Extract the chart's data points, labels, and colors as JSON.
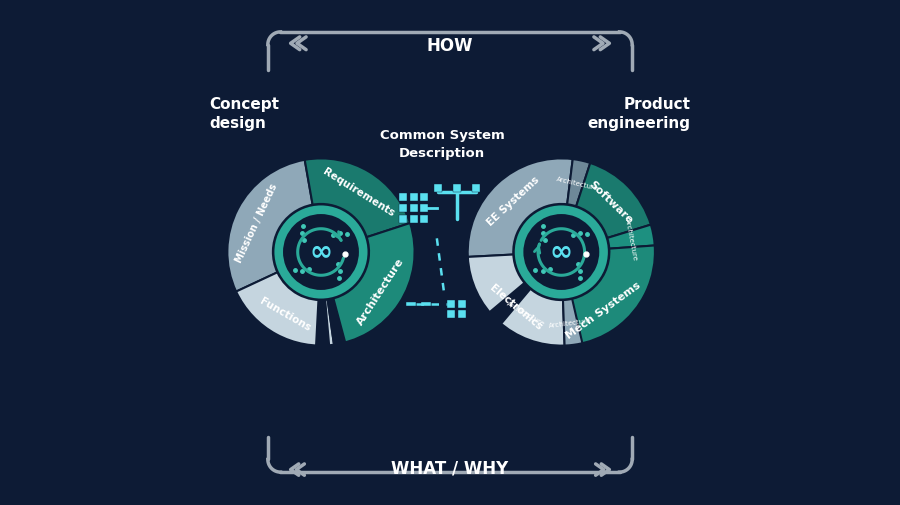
{
  "bg_color": "#0d1b35",
  "teal_dark": "#1a7a6e",
  "teal_mid": "#2aaa99",
  "teal_light": "#40c8b8",
  "cyan_light": "#5ae0f0",
  "gray_light": "#b0bec5",
  "gray_mid": "#8a9aaa",
  "gray_seg": "#8fa8b8",
  "gray_light_seg": "#c5d5df",
  "white": "#ffffff",
  "bracket_color": "#a0aab5",
  "lcx": 0.245,
  "lcy": 0.5,
  "rcx": 0.72,
  "rcy": 0.5,
  "ro": 0.185,
  "ri": 0.095,
  "how_label": "HOW",
  "what_why_label": "WHAT / WHY",
  "left_label": "Concept\ndesign",
  "right_label": "Product\nengineering",
  "center_title": "Common System\nDescription"
}
